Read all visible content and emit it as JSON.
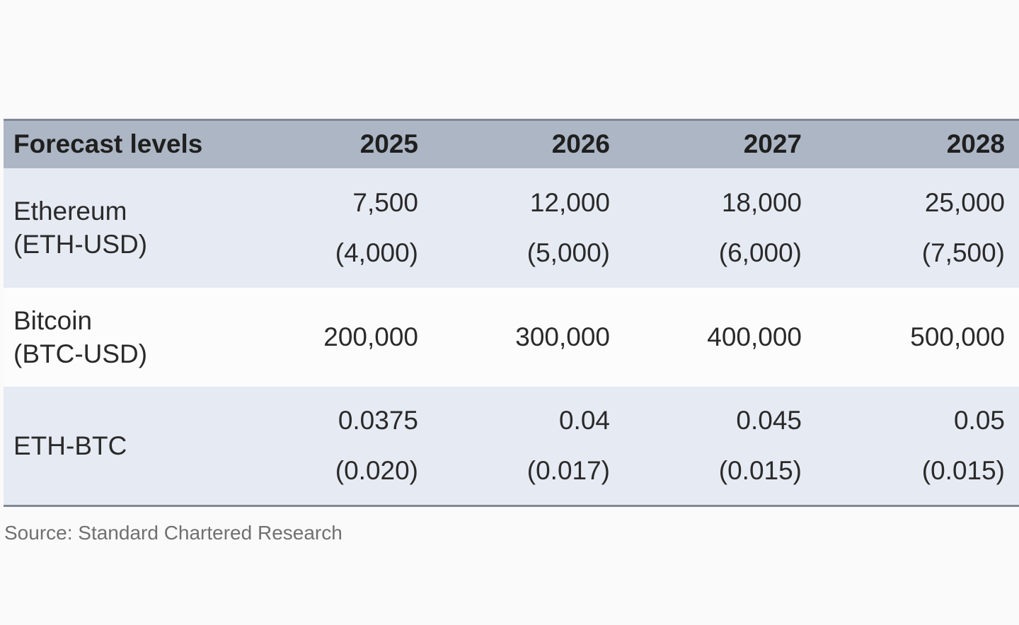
{
  "chart_data": {
    "type": "table",
    "columns": [
      "Forecast levels",
      "2025",
      "2026",
      "2027",
      "2028"
    ],
    "rows": [
      {
        "label": [
          "Ethereum",
          "(ETH-USD)"
        ],
        "base": [
          "7,500",
          "12,000",
          "18,000",
          "25,000"
        ],
        "bear": [
          "(4,000)",
          "(5,000)",
          "(6,000)",
          "(7,500)"
        ]
      },
      {
        "label": [
          "Bitcoin",
          "(BTC-USD)"
        ],
        "base": [
          "200,000",
          "300,000",
          "400,000",
          "500,000"
        ]
      },
      {
        "label": [
          "ETH-BTC"
        ],
        "base": [
          "0.0375",
          "0.04",
          "0.045",
          "0.05"
        ],
        "bear": [
          "(0.020)",
          "(0.017)",
          "(0.015)",
          "(0.015)"
        ]
      }
    ],
    "source": "Source: Standard Chartered Research",
    "colors": {
      "header_fill": "#adb6c4",
      "shaded_row": "#e6eaf3",
      "plain_row": "#fcfcfc",
      "rule": "#7f8896"
    }
  }
}
